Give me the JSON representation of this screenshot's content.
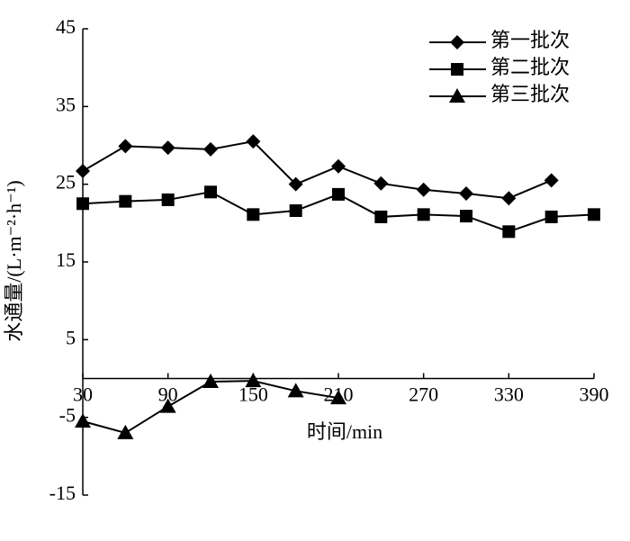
{
  "chart_data": {
    "type": "line",
    "x_label": "时间/min",
    "y_label": "水通量/(L·m⁻²·h⁻¹)",
    "x": [
      30,
      60,
      90,
      120,
      150,
      180,
      210,
      240,
      270,
      300,
      330,
      360,
      390
    ],
    "series": [
      {
        "name": "第一批次",
        "color": "#000000",
        "marker": "diamond",
        "values": [
          26.7,
          29.9,
          29.7,
          29.5,
          30.5,
          25.0,
          27.3,
          25.1,
          24.3,
          23.8,
          23.2,
          25.5,
          null
        ]
      },
      {
        "name": "第二批次",
        "color": "#000000",
        "marker": "square",
        "values": [
          22.5,
          22.8,
          23.0,
          24.0,
          21.1,
          21.6,
          23.7,
          20.8,
          21.1,
          20.9,
          18.9,
          20.8,
          21.1
        ]
      },
      {
        "name": "第三批次",
        "color": "#000000",
        "marker": "triangle",
        "values": [
          -5.5,
          -7.0,
          -3.6,
          -0.4,
          -0.3,
          -1.6,
          -2.5,
          null,
          null,
          null,
          null,
          null,
          null
        ]
      }
    ],
    "xlim": [
      30,
      390
    ],
    "xticks": [
      30,
      90,
      150,
      210,
      270,
      330,
      390
    ],
    "ylim": [
      -15,
      45
    ],
    "yticks": [
      -15,
      -5,
      5,
      15,
      25,
      35,
      45
    ],
    "legend": "top-right",
    "grid": false
  }
}
